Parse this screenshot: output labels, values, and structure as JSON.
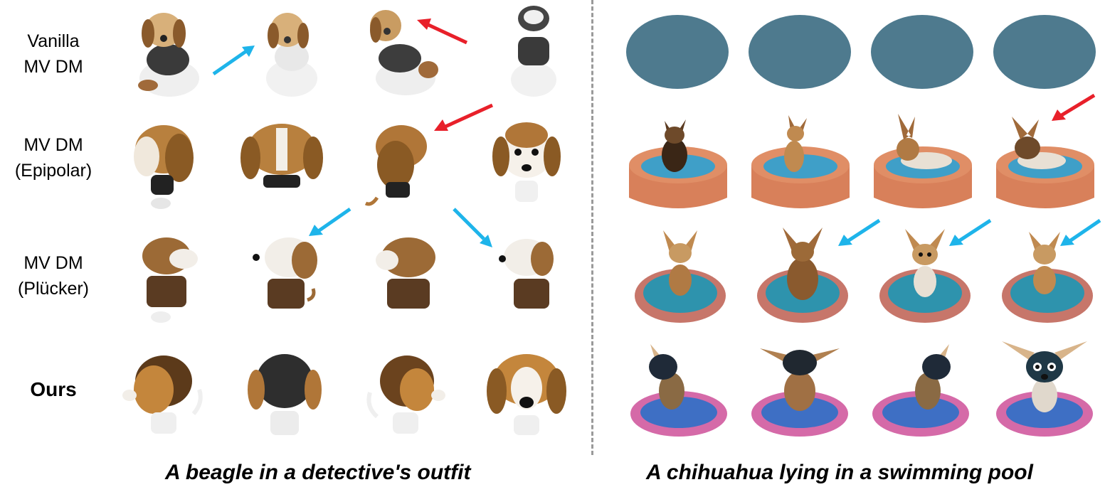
{
  "rows": [
    {
      "label_line1": "Vanilla",
      "label_line2": "MV DM"
    },
    {
      "label_line1": "MV DM",
      "label_line2": "(Epipolar)"
    },
    {
      "label_line1": "MV DM",
      "label_line2": "(Plücker)"
    },
    {
      "label_line1": "Ours",
      "label_line2": ""
    }
  ],
  "captions": {
    "left": "A beagle in a detective's outfit",
    "right": "A chihuahua lying in a swimming pool"
  },
  "colors": {
    "red_arrow": "#e8202a",
    "blue_arrow": "#1eb4ea",
    "pool_blue": "#4e7a8e",
    "divider": "#9a9a9a"
  }
}
